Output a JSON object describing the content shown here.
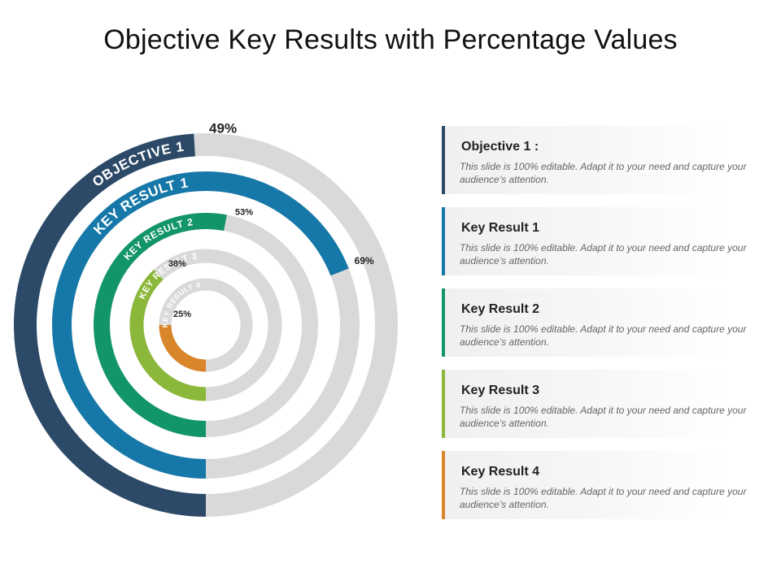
{
  "page": {
    "title": "Objective Key Results with Percentage Values"
  },
  "chart_data": {
    "type": "radial-progress",
    "rings": [
      {
        "label": "OBJECTIVE 1",
        "value": 49,
        "value_label": "49%",
        "color": "#2c4a68"
      },
      {
        "label": "KEY RESULT 1",
        "value": 69,
        "value_label": "69%",
        "color": "#1678a8"
      },
      {
        "label": "KEY RESULT 2",
        "value": 53,
        "value_label": "53%",
        "color": "#13956a"
      },
      {
        "label": "KEY RESULT 3",
        "value": 38,
        "value_label": "38%",
        "color": "#8bb83a"
      },
      {
        "label": "KEY RESULT 4",
        "value": 25,
        "value_label": "25%",
        "color": "#d9852a"
      }
    ],
    "track_color": "#d9d9d9"
  },
  "cards": [
    {
      "title": "Objective 1 :",
      "desc": "This slide is 100% editable. Adapt it to your need and capture your audience’s attention.",
      "color": "#2c4a68"
    },
    {
      "title": "Key Result 1",
      "desc": "This slide is 100% editable. Adapt it to your need and capture your audience’s attention.",
      "color": "#1678a8"
    },
    {
      "title": "Key Result 2",
      "desc": "This slide is 100% editable. Adapt it to your need and capture your audience’s attention.",
      "color": "#13956a"
    },
    {
      "title": "Key Result 3",
      "desc": "This slide is 100% editable. Adapt it to your need and capture your audience’s attention.",
      "color": "#8bb83a"
    },
    {
      "title": "Key Result 4",
      "desc": "This slide is 100% editable. Adapt it to your need and capture your audience’s attention.",
      "color": "#d9852a"
    }
  ]
}
